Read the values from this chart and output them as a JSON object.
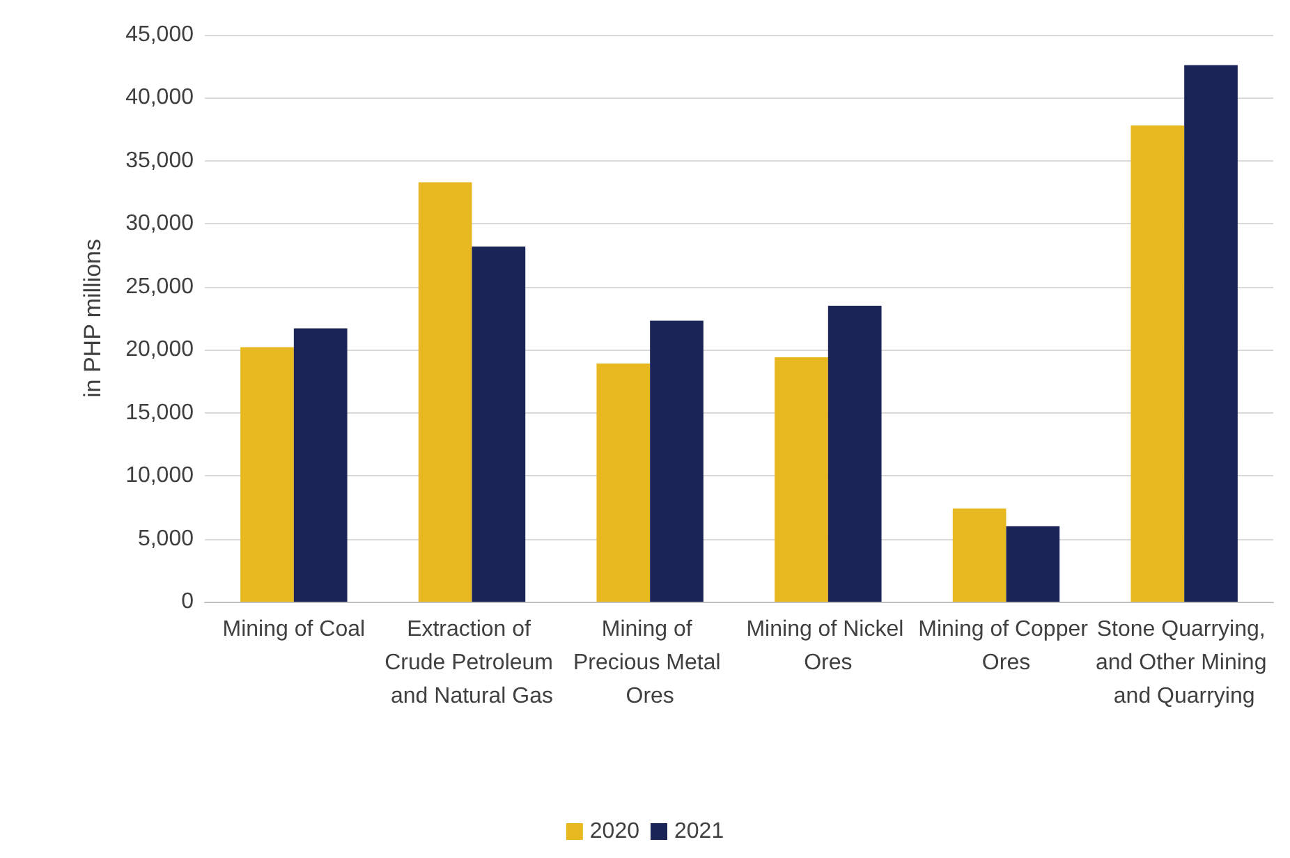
{
  "chart_data": {
    "type": "bar",
    "ylabel": "in PHP millions",
    "categories": [
      "Mining of Coal",
      "Extraction of Crude Petroleum and Natural Gas",
      "Mining of Precious Metal Ores",
      "Mining of Nickel Ores",
      "Mining of Copper Ores",
      "Stone Quarrying, and Other Mining and Quarrying"
    ],
    "series": [
      {
        "name": "2020",
        "color": "#e8b820",
        "values": [
          20200,
          33300,
          18900,
          19400,
          7400,
          37800
        ]
      },
      {
        "name": "2021",
        "color": "#1a2456",
        "values": [
          21700,
          28200,
          22300,
          23500,
          6000,
          42600
        ]
      }
    ],
    "ylim": [
      0,
      45000
    ],
    "yticks": [
      0,
      {
        "value": 5000,
        "label": "5,000"
      },
      {
        "value": 10000,
        "label": "10,000"
      },
      {
        "value": 15000,
        "label": "15,000"
      },
      {
        "value": 20000,
        "label": "20,000"
      },
      {
        "value": 25000,
        "label": "25,000"
      },
      {
        "value": 30000,
        "label": "30,000"
      },
      {
        "value": 35000,
        "label": "35,000"
      },
      {
        "value": 40000,
        "label": "40,000"
      },
      {
        "value": 45000,
        "label": "45,000"
      }
    ],
    "grid": "y",
    "legend": "bottom"
  }
}
